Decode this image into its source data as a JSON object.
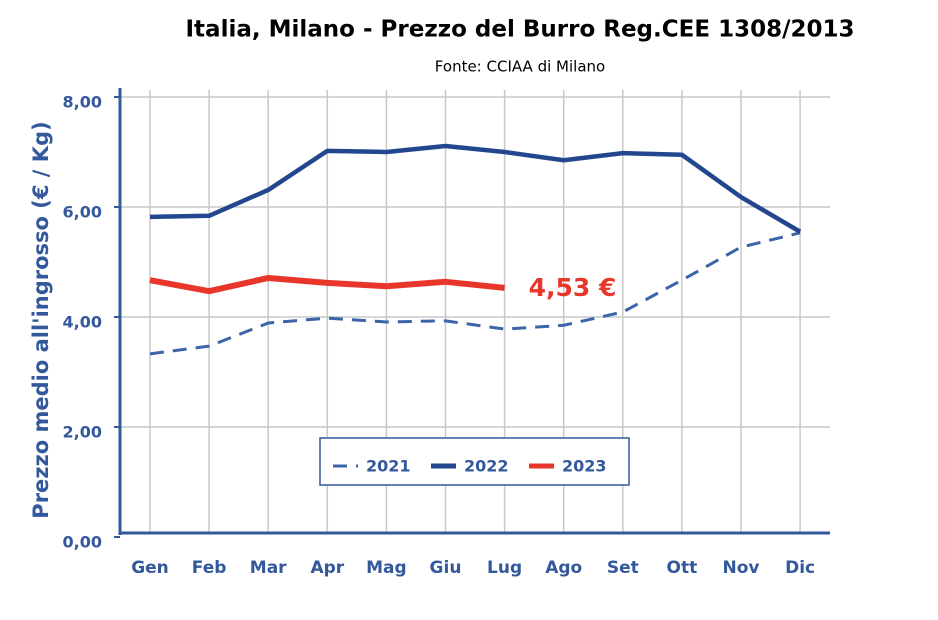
{
  "chart_data": {
    "type": "line",
    "title": "Italia, Milano - Prezzo del Burro Reg.CEE 1308/2013",
    "subtitle": "Fonte: CCIAA di Milano",
    "y_label": "Prezzo medio all'ingrosso (€ / Kg)",
    "categories": [
      "Gen",
      "Feb",
      "Mar",
      "Apr",
      "Mag",
      "Giu",
      "Lug",
      "Ago",
      "Set",
      "Ott",
      "Nov",
      "Dic"
    ],
    "series": [
      {
        "name": "2021",
        "color": "#3c64a8",
        "line_style": "dashed",
        "values": [
          3.33,
          3.47,
          3.89,
          3.98,
          3.91,
          3.93,
          3.78,
          3.85,
          4.09,
          4.67,
          5.27,
          5.53
        ]
      },
      {
        "name": "2022",
        "color": "#23478f",
        "line_style": "solid",
        "values": [
          5.82,
          5.84,
          6.31,
          7.02,
          7.0,
          7.11,
          7.0,
          6.85,
          6.98,
          6.95,
          6.18,
          5.55
        ]
      },
      {
        "name": "2023",
        "color": "#e8372a",
        "line_style": "solid",
        "values": [
          4.67,
          4.47,
          4.71,
          4.62,
          4.56,
          4.64,
          4.53,
          null,
          null,
          null,
          null,
          null
        ],
        "value_labels": [
          null,
          null,
          null,
          null,
          null,
          null,
          "4,53 €",
          null,
          null,
          null,
          null,
          null
        ]
      }
    ],
    "ylim": [
      0,
      8
    ],
    "yticks": [
      {
        "value": 0,
        "label": "0,00"
      },
      {
        "value": 2,
        "label": "2,00"
      },
      {
        "value": 4,
        "label": "4,00"
      },
      {
        "value": 6,
        "label": "6,00"
      },
      {
        "value": 8,
        "label": "8,00"
      }
    ],
    "grid": true
  }
}
